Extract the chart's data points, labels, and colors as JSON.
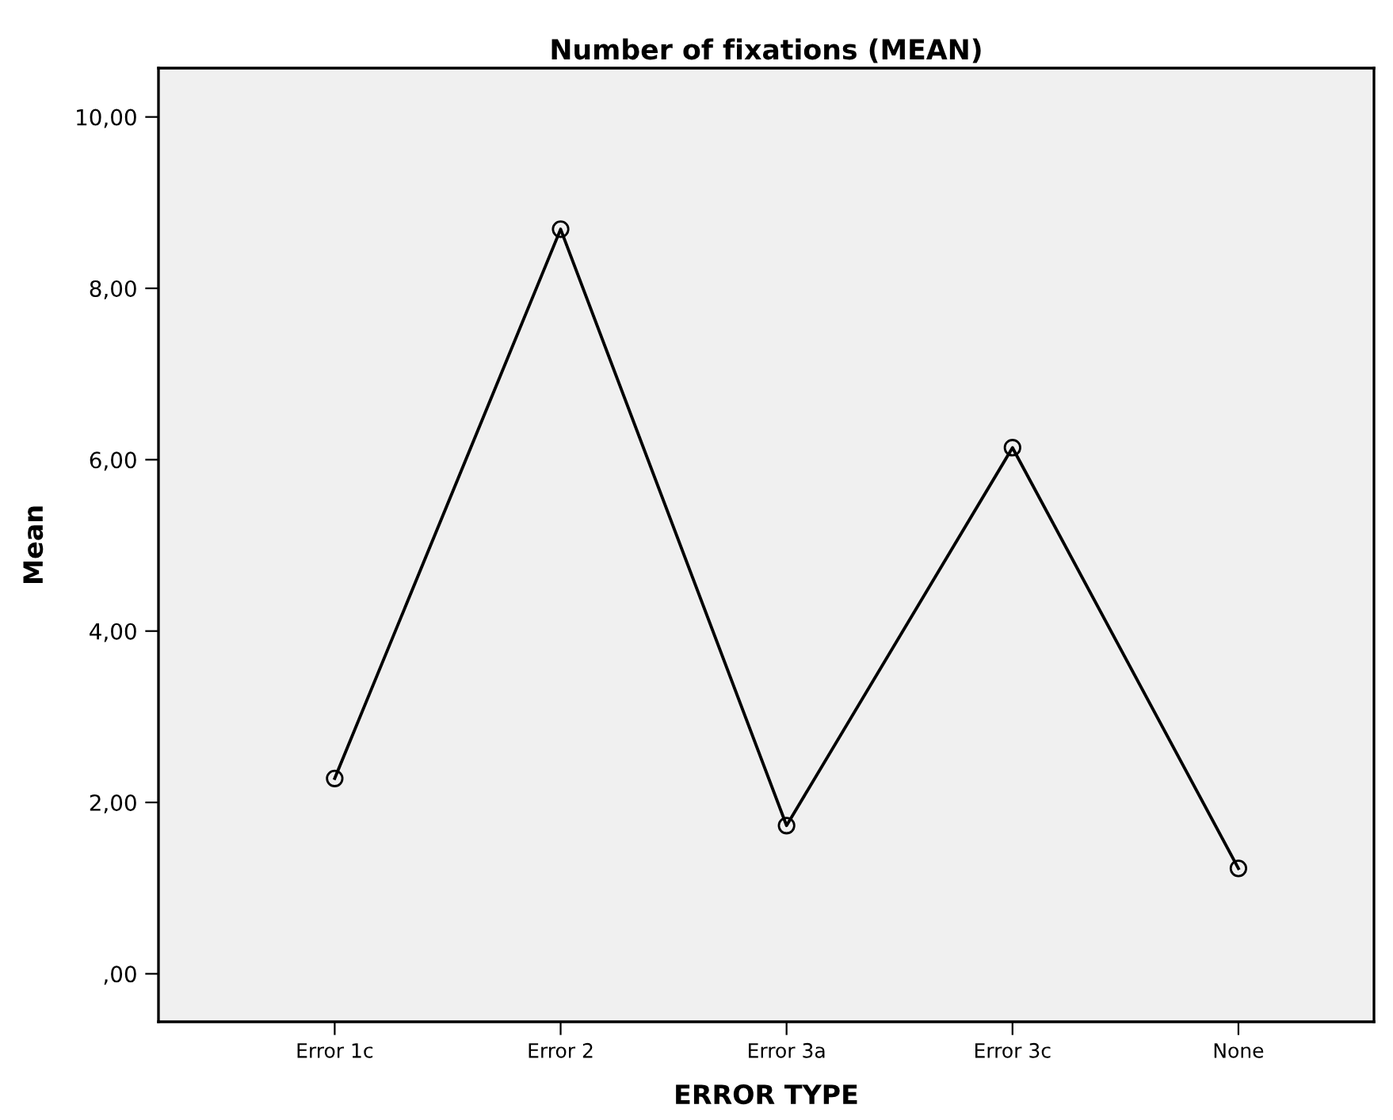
{
  "chart_data": {
    "type": "line",
    "title": "Number of fixations (MEAN)",
    "xlabel": "ERROR TYPE",
    "ylabel": "Mean",
    "categories": [
      "Error 1c",
      "Error 2",
      "Error 3a",
      "Error 3c",
      "None"
    ],
    "series": [
      {
        "color": "#000000",
        "values": [
          2.28,
          8.69,
          1.73,
          6.14,
          1.23
        ]
      }
    ],
    "ylim": [
      -0.56,
      10.57
    ],
    "yticks": [
      {
        "value": 0,
        "label": ",00"
      },
      {
        "value": 2,
        "label": "2,00"
      },
      {
        "value": 4,
        "label": "4,00"
      },
      {
        "value": 6,
        "label": "6,00"
      },
      {
        "value": 8,
        "label": "8,00"
      },
      {
        "value": 10,
        "label": "10,00"
      }
    ],
    "marker": "circle",
    "line_style": "solid",
    "grid": false
  }
}
